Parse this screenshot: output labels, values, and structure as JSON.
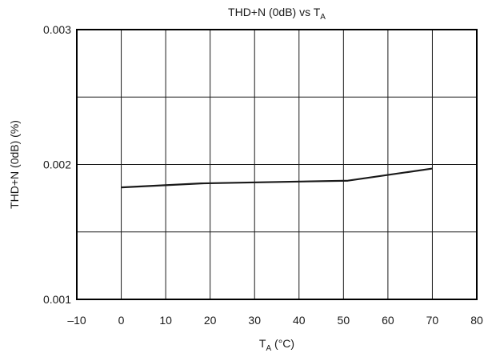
{
  "chart_data": {
    "type": "line",
    "title_main": "THD+N (0dB) vs T",
    "title_sub": "A",
    "xlabel_main": "T",
    "xlabel_sub": "A",
    "xlabel_unit": " (°C)",
    "ylabel": "THD+N (0dB) (%)",
    "xlim": [
      -10,
      80
    ],
    "ylim": [
      0.001,
      0.003
    ],
    "xticks": [
      -10,
      0,
      10,
      20,
      30,
      40,
      50,
      60,
      70,
      80
    ],
    "xtick_labels": [
      "–10",
      "0",
      "10",
      "20",
      "30",
      "40",
      "50",
      "60",
      "70",
      "80"
    ],
    "yticks": [
      0.001,
      0.0015,
      0.002,
      0.0025,
      0.003
    ],
    "ytick_labels": [
      "0.001",
      "",
      "0.002",
      "",
      "0.003"
    ],
    "grid": true,
    "series": [
      {
        "x": [
          0,
          18,
          51,
          70
        ],
        "y": [
          0.00183,
          0.00186,
          0.00188,
          0.00197
        ]
      }
    ],
    "colors": {
      "line": "#1a1a1a",
      "grid": "#1a1a1a",
      "frame": "#000000"
    }
  }
}
